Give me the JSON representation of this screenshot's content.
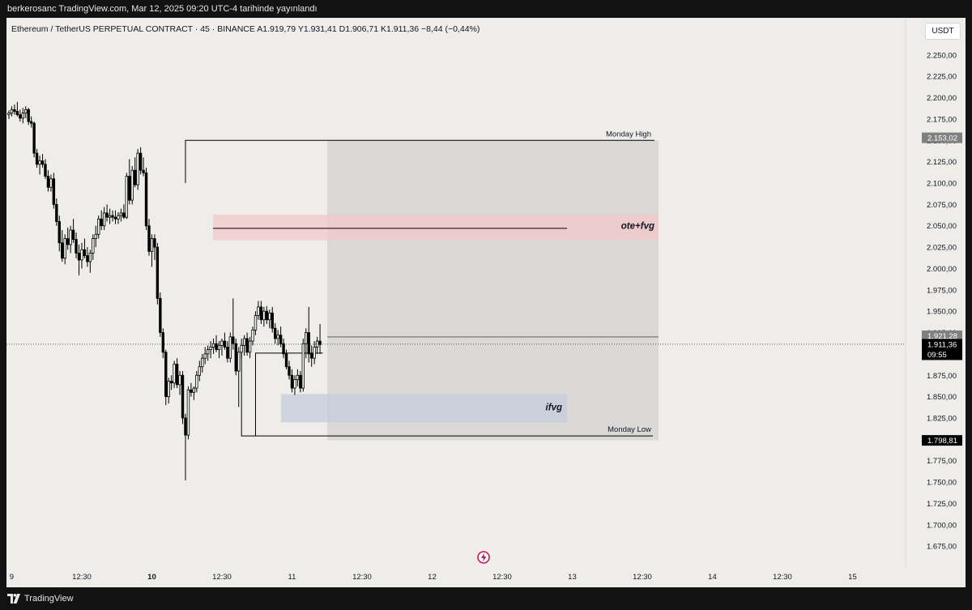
{
  "header": {
    "published_text": "berkerosanc TradingView.com, Mar 12, 2025 09:20 UTC-4 tarihinde yayınlandı"
  },
  "symbol": {
    "line": "Ethereum / TetherUS PERPETUAL CONTRACT · 45 · BINANCE   A1.919,79   Y1.931,41   D1.906,71   K1.911,36   −8,44 (−0,44%)",
    "currency": "USDT"
  },
  "footer": {
    "brand": "TradingView"
  },
  "icons": {
    "logo": "tradingview-logo-icon",
    "event": "lightning-event-icon"
  },
  "colors": {
    "up": "#ffffff",
    "down": "#000000",
    "wick": "#000000",
    "box_gray": "#c9c9c9",
    "ote_fvg": "#f2c4c8",
    "ifvg": "#c5cbda",
    "price_badge": "#000000",
    "prev_badge": "#808080"
  },
  "chart_data": {
    "type": "candlestick",
    "timeframe": "45",
    "ylim": [
      1660,
      2265
    ],
    "y_ticks": [
      {
        "v": 2250,
        "label": "2.250,00"
      },
      {
        "v": 2225,
        "label": "2.225,00"
      },
      {
        "v": 2200,
        "label": "2.200,00"
      },
      {
        "v": 2175,
        "label": "2.175,00"
      },
      {
        "v": 2150,
        "label": "2.150,00"
      },
      {
        "v": 2125,
        "label": "2.125,00"
      },
      {
        "v": 2100,
        "label": "2.100,00"
      },
      {
        "v": 2075,
        "label": "2.075,00"
      },
      {
        "v": 2050,
        "label": "2.050,00"
      },
      {
        "v": 2025,
        "label": "2.025,00"
      },
      {
        "v": 2000,
        "label": "2.000,00"
      },
      {
        "v": 1975,
        "label": "1.975,00"
      },
      {
        "v": 1950,
        "label": "1.950,00"
      },
      {
        "v": 1925,
        "label": "1.925,00"
      },
      {
        "v": 1900,
        "label": "1.900,00"
      },
      {
        "v": 1875,
        "label": "1.875,00"
      },
      {
        "v": 1850,
        "label": "1.850,00"
      },
      {
        "v": 1825,
        "label": "1.825,00"
      },
      {
        "v": 1800,
        "label": "1.800,00"
      },
      {
        "v": 1775,
        "label": "1.775,00"
      },
      {
        "v": 1750,
        "label": "1.750,00"
      },
      {
        "v": 1725,
        "label": "1.725,00"
      },
      {
        "v": 1700,
        "label": "1.700,00"
      },
      {
        "v": 1675,
        "label": "1.675,00"
      }
    ],
    "x_ticks": [
      {
        "i": 1,
        "label": "9",
        "bold": false
      },
      {
        "i": 26,
        "label": "12:30",
        "bold": false
      },
      {
        "i": 51,
        "label": "10",
        "bold": true
      },
      {
        "i": 76,
        "label": "12:30",
        "bold": false
      },
      {
        "i": 101,
        "label": "11",
        "bold": false
      },
      {
        "i": 126,
        "label": "12:30",
        "bold": false
      },
      {
        "i": 151,
        "label": "12",
        "bold": false
      },
      {
        "i": 176,
        "label": "12:30",
        "bold": false
      },
      {
        "i": 201,
        "label": "13",
        "bold": false
      },
      {
        "i": 226,
        "label": "12:30",
        "bold": false
      },
      {
        "i": 251,
        "label": "14",
        "bold": false
      },
      {
        "i": 276,
        "label": "12:30",
        "bold": false
      },
      {
        "i": 301,
        "label": "15",
        "bold": false
      }
    ],
    "ohlc": [
      [
        2180,
        2185,
        2175,
        2182
      ],
      [
        2182,
        2190,
        2178,
        2186
      ],
      [
        2186,
        2192,
        2180,
        2184
      ],
      [
        2184,
        2195,
        2178,
        2180
      ],
      [
        2180,
        2186,
        2172,
        2176
      ],
      [
        2176,
        2188,
        2170,
        2182
      ],
      [
        2182,
        2190,
        2176,
        2186
      ],
      [
        2186,
        2188,
        2168,
        2172
      ],
      [
        2172,
        2178,
        2165,
        2170
      ],
      [
        2170,
        2172,
        2130,
        2135
      ],
      [
        2135,
        2140,
        2118,
        2122
      ],
      [
        2122,
        2132,
        2110,
        2126
      ],
      [
        2126,
        2134,
        2118,
        2122
      ],
      [
        2122,
        2128,
        2105,
        2108
      ],
      [
        2108,
        2115,
        2090,
        2095
      ],
      [
        2095,
        2110,
        2090,
        2105
      ],
      [
        2105,
        2112,
        2070,
        2075
      ],
      [
        2075,
        2082,
        2050,
        2055
      ],
      [
        2055,
        2062,
        2020,
        2030
      ],
      [
        2030,
        2045,
        2008,
        2012
      ],
      [
        2012,
        2040,
        2005,
        2035
      ],
      [
        2035,
        2048,
        2022,
        2028
      ],
      [
        2028,
        2050,
        2018,
        2045
      ],
      [
        2045,
        2058,
        2030,
        2034
      ],
      [
        2034,
        2042,
        2012,
        2018
      ],
      [
        2018,
        2028,
        1992,
        2010
      ],
      [
        2010,
        2030,
        2000,
        2022
      ],
      [
        2022,
        2035,
        2012,
        2015
      ],
      [
        2015,
        2025,
        2002,
        2008
      ],
      [
        2008,
        2022,
        1995,
        2018
      ],
      [
        2018,
        2040,
        2010,
        2035
      ],
      [
        2035,
        2050,
        2025,
        2040
      ],
      [
        2040,
        2062,
        2035,
        2058
      ],
      [
        2058,
        2068,
        2045,
        2050
      ],
      [
        2050,
        2072,
        2045,
        2065
      ],
      [
        2065,
        2075,
        2055,
        2060
      ],
      [
        2060,
        2070,
        2052,
        2062
      ],
      [
        2062,
        2068,
        2055,
        2060
      ],
      [
        2060,
        2068,
        2052,
        2058
      ],
      [
        2058,
        2066,
        2052,
        2062
      ],
      [
        2062,
        2070,
        2055,
        2065
      ],
      [
        2065,
        2075,
        2058,
        2060
      ],
      [
        2060,
        2112,
        2058,
        2108
      ],
      [
        2108,
        2128,
        2075,
        2080
      ],
      [
        2080,
        2120,
        2075,
        2115
      ],
      [
        2115,
        2130,
        2095,
        2098
      ],
      [
        2098,
        2140,
        2092,
        2135
      ],
      [
        2135,
        2142,
        2110,
        2115
      ],
      [
        2115,
        2130,
        2108,
        2112
      ],
      [
        2112,
        2118,
        2045,
        2050
      ],
      [
        2050,
        2058,
        2015,
        2020
      ],
      [
        2020,
        2040,
        2002,
        2035
      ],
      [
        2035,
        2040,
        2010,
        2025
      ],
      [
        2025,
        2030,
        1958,
        1965
      ],
      [
        1965,
        1972,
        1920,
        1925
      ],
      [
        1925,
        1930,
        1895,
        1902
      ],
      [
        1902,
        1905,
        1840,
        1850
      ],
      [
        1850,
        1872,
        1842,
        1868
      ],
      [
        1868,
        1875,
        1858,
        1866
      ],
      [
        1866,
        1892,
        1860,
        1888
      ],
      [
        1888,
        1895,
        1860,
        1864
      ],
      [
        1864,
        1880,
        1852,
        1875
      ],
      [
        1875,
        1880,
        1818,
        1825
      ],
      [
        1825,
        1830,
        1752,
        1805
      ],
      [
        1805,
        1862,
        1800,
        1858
      ],
      [
        1858,
        1866,
        1850,
        1855
      ],
      [
        1855,
        1862,
        1846,
        1860
      ],
      [
        1860,
        1880,
        1855,
        1875
      ],
      [
        1875,
        1892,
        1868,
        1885
      ],
      [
        1885,
        1900,
        1878,
        1895
      ],
      [
        1895,
        1908,
        1888,
        1900
      ],
      [
        1900,
        1910,
        1892,
        1905
      ],
      [
        1905,
        1915,
        1895,
        1908
      ],
      [
        1908,
        1918,
        1900,
        1912
      ],
      [
        1912,
        1922,
        1902,
        1905
      ],
      [
        1905,
        1915,
        1895,
        1910
      ],
      [
        1910,
        1918,
        1898,
        1915
      ],
      [
        1915,
        1925,
        1905,
        1908
      ],
      [
        1908,
        1915,
        1890,
        1895
      ],
      [
        1895,
        1925,
        1890,
        1920
      ],
      [
        1920,
        1965,
        1905,
        1912
      ],
      [
        1912,
        1918,
        1875,
        1880
      ],
      [
        1880,
        1908,
        1838,
        1902
      ],
      [
        1902,
        1918,
        1895,
        1910
      ],
      [
        1910,
        1922,
        1898,
        1918
      ],
      [
        1918,
        1925,
        1898,
        1902
      ],
      [
        1902,
        1920,
        1895,
        1915
      ],
      [
        1915,
        1932,
        1910,
        1928
      ],
      [
        1928,
        1950,
        1922,
        1945
      ],
      [
        1945,
        1962,
        1940,
        1955
      ],
      [
        1955,
        1962,
        1935,
        1940
      ],
      [
        1940,
        1955,
        1932,
        1950
      ],
      [
        1950,
        1956,
        1935,
        1940
      ],
      [
        1940,
        1952,
        1930,
        1948
      ],
      [
        1948,
        1955,
        1925,
        1930
      ],
      [
        1930,
        1936,
        1912,
        1918
      ],
      [
        1918,
        1928,
        1910,
        1922
      ],
      [
        1922,
        1932,
        1908,
        1912
      ],
      [
        1912,
        1918,
        1895,
        1900
      ],
      [
        1900,
        1905,
        1882,
        1885
      ],
      [
        1885,
        1892,
        1870,
        1875
      ],
      [
        1875,
        1882,
        1855,
        1860
      ],
      [
        1860,
        1875,
        1852,
        1870
      ],
      [
        1870,
        1882,
        1862,
        1875
      ],
      [
        1875,
        1880,
        1855,
        1860
      ],
      [
        1860,
        1918,
        1856,
        1912
      ],
      [
        1912,
        1930,
        1895,
        1925
      ],
      [
        1925,
        1955,
        1890,
        1900
      ],
      [
        1900,
        1910,
        1885,
        1895
      ],
      [
        1895,
        1915,
        1888,
        1908
      ],
      [
        1908,
        1920,
        1900,
        1915
      ],
      [
        1915,
        1935,
        1900,
        1911
      ]
    ],
    "annotations": [
      {
        "name": "monday-high",
        "label": "Monday High",
        "value": 2150
      },
      {
        "name": "monday-low",
        "label": "Monday Low",
        "value": 1804
      },
      {
        "name": "ote-fvg",
        "label": "ote+fvg",
        "top": 2063,
        "bottom": 2033
      },
      {
        "name": "ifvg",
        "label": "ifvg",
        "top": 1853,
        "bottom": 1820
      },
      {
        "name": "range-box",
        "top": 2150,
        "bottom": 1799
      },
      {
        "name": "ote-line",
        "value": 2047
      },
      {
        "name": "prev-close-line",
        "value": 1920
      },
      {
        "name": "current-price-line",
        "value": 1911.36
      }
    ],
    "price_badges": [
      {
        "name": "monday-high-badge",
        "value": 2153.02,
        "label": "2.153,02",
        "style": "gray"
      },
      {
        "name": "prev-price-badge",
        "value": 1921.28,
        "label": "1.921,28",
        "style": "gray"
      },
      {
        "name": "current-price-badge",
        "value": 1911.36,
        "label": "1.911,36",
        "timer": "09:55",
        "style": "black"
      },
      {
        "name": "low-badge",
        "value": 1798.81,
        "label": "1.798,81",
        "style": "black"
      }
    ]
  }
}
